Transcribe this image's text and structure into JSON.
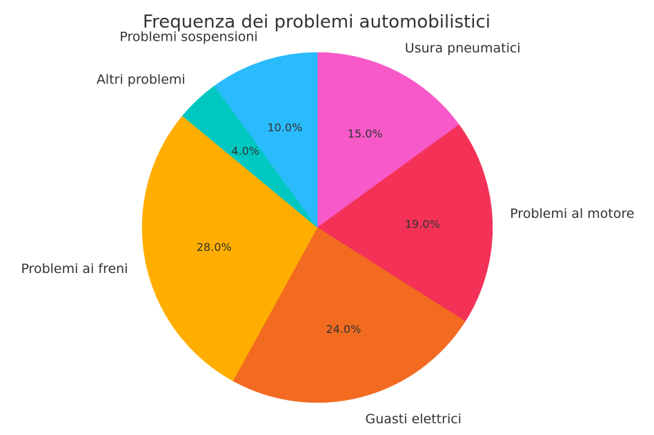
{
  "chart_data": {
    "type": "pie",
    "title": "Frequenza dei problemi automobilistici",
    "labels": [
      "Usura pneumatici",
      "Problemi al motore",
      "Guasti elettrici",
      "Problemi ai freni",
      "Altri problemi",
      "Problemi sospensioni"
    ],
    "values": [
      15.0,
      19.0,
      24.0,
      28.0,
      4.0,
      10.0
    ],
    "value_labels": [
      "15.0%",
      "19.0%",
      "24.0%",
      "28.0%",
      "4.0%",
      "10.0%"
    ],
    "colors": [
      "#F75AC8",
      "#F43258",
      "#F26B21",
      "#FFAE00",
      "#00C8C0",
      "#2ABBFC"
    ],
    "start_angle_deg": 90,
    "direction": "clockwise",
    "legend": "none"
  }
}
